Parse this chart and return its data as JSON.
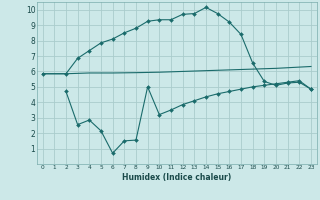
{
  "xlabel": "Humidex (Indice chaleur)",
  "xlim": [
    -0.5,
    23.5
  ],
  "ylim": [
    0,
    10.5
  ],
  "xticks": [
    0,
    1,
    2,
    3,
    4,
    5,
    6,
    7,
    8,
    9,
    10,
    11,
    12,
    13,
    14,
    15,
    16,
    17,
    18,
    19,
    20,
    21,
    22,
    23
  ],
  "yticks": [
    1,
    2,
    3,
    4,
    5,
    6,
    7,
    8,
    9,
    10
  ],
  "bg_color": "#cce8e8",
  "grid_color": "#aacccc",
  "line_color": "#1a6b6b",
  "line1_x": [
    0,
    2,
    3,
    4,
    5,
    6,
    7,
    8,
    9,
    10,
    11,
    12,
    13,
    14,
    15,
    16,
    17,
    18,
    19,
    20,
    21,
    22,
    23
  ],
  "line1_y": [
    5.85,
    5.85,
    6.85,
    7.35,
    7.85,
    8.1,
    8.5,
    8.8,
    9.25,
    9.35,
    9.35,
    9.7,
    9.75,
    10.15,
    9.75,
    9.2,
    8.4,
    6.55,
    5.35,
    5.1,
    5.25,
    5.3,
    4.85
  ],
  "line2_x": [
    0,
    2,
    4,
    6,
    8,
    10,
    12,
    14,
    16,
    18,
    20,
    22,
    23
  ],
  "line2_y": [
    5.85,
    5.85,
    5.9,
    5.9,
    5.92,
    5.95,
    6.0,
    6.05,
    6.1,
    6.15,
    6.2,
    6.28,
    6.32
  ],
  "line3_x": [
    2,
    3,
    4,
    5,
    6,
    7,
    8,
    9,
    10,
    11,
    12,
    13,
    14,
    15,
    16,
    17,
    18,
    19,
    20,
    21,
    22,
    23
  ],
  "line3_y": [
    4.7,
    2.55,
    2.85,
    2.15,
    0.7,
    1.5,
    1.55,
    5.0,
    3.2,
    3.5,
    3.85,
    4.1,
    4.35,
    4.55,
    4.7,
    4.85,
    5.0,
    5.1,
    5.2,
    5.3,
    5.4,
    4.85
  ],
  "marker_size": 2.0,
  "line_width": 0.8
}
